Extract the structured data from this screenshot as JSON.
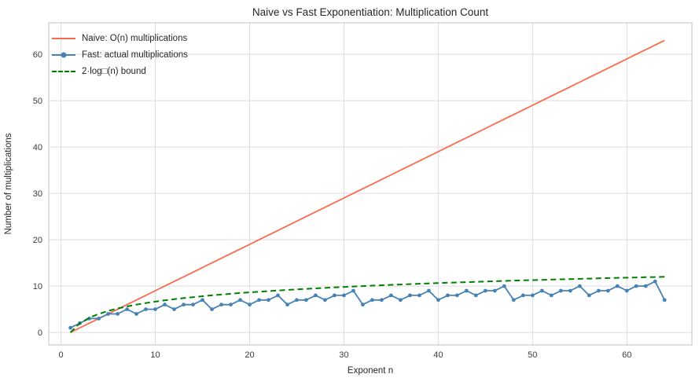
{
  "figure": {
    "title": "Naive vs Fast Exponentiation: Multiplication Count",
    "xlabel": "Exponent n",
    "ylabel": "Number of multiplications"
  },
  "chart_data": {
    "type": "line",
    "title": "Naive vs Fast Exponentiation: Multiplication Count",
    "xlabel": "Exponent n",
    "ylabel": "Number of multiplications",
    "x_ticks": [
      0,
      10,
      20,
      30,
      40,
      50,
      60
    ],
    "y_ticks": [
      0,
      10,
      20,
      30,
      40,
      50,
      60
    ],
    "xlim": [
      -1.3,
      66.9
    ],
    "ylim": [
      -2.7,
      66.8
    ],
    "grid": true,
    "legend_position": "upper-left",
    "x": [
      1,
      2,
      3,
      4,
      5,
      6,
      7,
      8,
      9,
      10,
      11,
      12,
      13,
      14,
      15,
      16,
      17,
      18,
      19,
      20,
      21,
      22,
      23,
      24,
      25,
      26,
      27,
      28,
      29,
      30,
      31,
      32,
      33,
      34,
      35,
      36,
      37,
      38,
      39,
      40,
      41,
      42,
      43,
      44,
      45,
      46,
      47,
      48,
      49,
      50,
      51,
      52,
      53,
      54,
      55,
      56,
      57,
      58,
      59,
      60,
      61,
      62,
      63,
      64
    ],
    "series": [
      {
        "name": "Naive: O(n) multiplications",
        "style": "solid",
        "color": "#fb6a4d",
        "width": 1.8,
        "markers": false,
        "values": [
          0,
          1,
          2,
          3,
          4,
          5,
          6,
          7,
          8,
          9,
          10,
          11,
          12,
          13,
          14,
          15,
          16,
          17,
          18,
          19,
          20,
          21,
          22,
          23,
          24,
          25,
          26,
          27,
          28,
          29,
          30,
          31,
          32,
          33,
          34,
          35,
          36,
          37,
          38,
          39,
          40,
          41,
          42,
          43,
          44,
          45,
          46,
          47,
          48,
          49,
          50,
          51,
          52,
          53,
          54,
          55,
          56,
          57,
          58,
          59,
          60,
          61,
          62,
          63
        ]
      },
      {
        "name": "Fast: actual multiplications",
        "style": "solid",
        "color": "#4682b4",
        "width": 1.8,
        "markers": true,
        "marker_radius": 2.4,
        "values": [
          1,
          2,
          3,
          3,
          4,
          4,
          5,
          4,
          5,
          5,
          6,
          5,
          6,
          6,
          7,
          5,
          6,
          6,
          7,
          6,
          7,
          7,
          8,
          6,
          7,
          7,
          8,
          7,
          8,
          8,
          9,
          6,
          7,
          7,
          8,
          7,
          8,
          8,
          9,
          7,
          8,
          8,
          9,
          8,
          9,
          9,
          10,
          7,
          8,
          8,
          9,
          8,
          9,
          9,
          10,
          8,
          9,
          9,
          10,
          9,
          10,
          10,
          11,
          7
        ]
      },
      {
        "name": "2·log□(n) bound",
        "style": "dashed",
        "color": "#008000",
        "width": 2,
        "dash": "7 4.5",
        "markers": false,
        "values": [
          0,
          2,
          3.17,
          4,
          4.64,
          5.17,
          5.61,
          6,
          6.34,
          6.64,
          6.92,
          7.17,
          7.4,
          7.61,
          7.81,
          8,
          8.17,
          8.34,
          8.5,
          8.64,
          8.78,
          8.92,
          9.05,
          9.17,
          9.29,
          9.4,
          9.51,
          9.61,
          9.72,
          9.81,
          9.91,
          10,
          10.09,
          10.17,
          10.26,
          10.34,
          10.42,
          10.5,
          10.57,
          10.64,
          10.72,
          10.78,
          10.85,
          10.92,
          10.98,
          11.05,
          11.11,
          11.17,
          11.23,
          11.29,
          11.34,
          11.4,
          11.46,
          11.51,
          11.56,
          11.61,
          11.67,
          11.72,
          11.77,
          11.81,
          11.86,
          11.91,
          11.95,
          12
        ]
      }
    ],
    "colors": {
      "grid": "#dcdcdc",
      "border": "#cccccc",
      "tick_label": "#3b3b3b",
      "background": "#ffffff"
    }
  }
}
